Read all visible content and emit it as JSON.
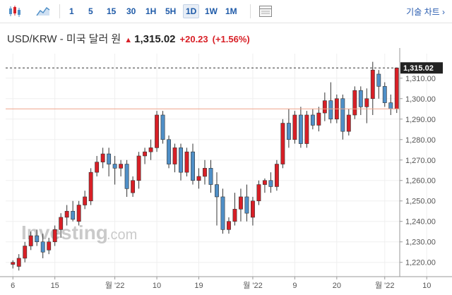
{
  "toolbar": {
    "icons": [
      "candlestick-icon",
      "area-chart-icon",
      "table-view-icon"
    ],
    "timeframes": [
      "1",
      "5",
      "15",
      "30",
      "1H",
      "5H",
      "1D",
      "1W",
      "1M"
    ],
    "active_timeframe": "1D",
    "technical_chart_label": "기술 차트 ›"
  },
  "header": {
    "name": "USD/KRW - 미국 달러 원",
    "direction_arrow": "▲",
    "price": "1,315.02",
    "change": "+20.23",
    "change_pct": "(+1.56%)"
  },
  "watermark": {
    "brand": "Investing",
    "suffix": ".com"
  },
  "colors": {
    "up": "#d81f26",
    "down": "#4f8fc7",
    "line": "#f0a38a"
  },
  "chart_data": {
    "type": "candlestick",
    "y_ticks": [
      "1,310.00",
      "1,300.00",
      "1,290.00",
      "1,280.00",
      "1,270.00",
      "1,260.00",
      "1,250.00",
      "1,240.00",
      "1,230.00",
      "1,220.00"
    ],
    "ylim": [
      1213,
      1322
    ],
    "x_ticks": [
      {
        "label": "6",
        "index": 0
      },
      {
        "label": "15",
        "index": 7
      },
      {
        "label": "월 '22",
        "index": 17
      },
      {
        "label": "10",
        "index": 24
      },
      {
        "label": "19",
        "index": 31
      },
      {
        "label": "월 '22",
        "index": 40
      },
      {
        "label": "9",
        "index": 47
      },
      {
        "label": "20",
        "index": 54
      },
      {
        "label": "월 '22",
        "index": 62
      },
      {
        "label": "10",
        "index": 69
      }
    ],
    "current_price_label": "1,315.02",
    "current_price": 1315.02,
    "previous_close_line": 1295,
    "candles": [
      [
        1219,
        1221,
        1217,
        1220
      ],
      [
        1218,
        1224,
        1216,
        1222
      ],
      [
        1222,
        1230,
        1220,
        1228
      ],
      [
        1228,
        1235,
        1226,
        1233
      ],
      [
        1233,
        1236,
        1228,
        1230
      ],
      [
        1230,
        1234,
        1222,
        1225
      ],
      [
        1226,
        1232,
        1224,
        1230
      ],
      [
        1230,
        1238,
        1228,
        1236
      ],
      [
        1236,
        1244,
        1232,
        1242
      ],
      [
        1242,
        1248,
        1238,
        1245
      ],
      [
        1245,
        1250,
        1240,
        1241
      ],
      [
        1240,
        1250,
        1238,
        1248
      ],
      [
        1248,
        1255,
        1246,
        1252
      ],
      [
        1250,
        1266,
        1248,
        1264
      ],
      [
        1264,
        1272,
        1262,
        1269
      ],
      [
        1269,
        1276,
        1266,
        1273
      ],
      [
        1273,
        1276,
        1262,
        1268
      ],
      [
        1268,
        1272,
        1258,
        1266
      ],
      [
        1266,
        1270,
        1262,
        1268
      ],
      [
        1268,
        1270,
        1252,
        1256
      ],
      [
        1254,
        1262,
        1252,
        1260
      ],
      [
        1260,
        1274,
        1256,
        1272
      ],
      [
        1272,
        1276,
        1268,
        1274
      ],
      [
        1274,
        1280,
        1270,
        1276
      ],
      [
        1276,
        1294,
        1274,
        1292
      ],
      [
        1292,
        1294,
        1278,
        1280
      ],
      [
        1280,
        1282,
        1266,
        1268
      ],
      [
        1268,
        1278,
        1264,
        1276
      ],
      [
        1276,
        1278,
        1260,
        1264
      ],
      [
        1264,
        1276,
        1262,
        1274
      ],
      [
        1274,
        1278,
        1258,
        1260
      ],
      [
        1260,
        1266,
        1256,
        1262
      ],
      [
        1262,
        1270,
        1258,
        1266
      ],
      [
        1266,
        1270,
        1254,
        1258
      ],
      [
        1258,
        1264,
        1238,
        1252
      ],
      [
        1252,
        1256,
        1234,
        1236
      ],
      [
        1236,
        1242,
        1234,
        1240
      ],
      [
        1240,
        1254,
        1238,
        1246
      ],
      [
        1246,
        1256,
        1240,
        1252
      ],
      [
        1252,
        1258,
        1240,
        1244
      ],
      [
        1242,
        1252,
        1238,
        1250
      ],
      [
        1250,
        1260,
        1248,
        1258
      ],
      [
        1258,
        1261,
        1254,
        1260
      ],
      [
        1260,
        1264,
        1254,
        1257
      ],
      [
        1257,
        1270,
        1255,
        1268
      ],
      [
        1268,
        1290,
        1266,
        1288
      ],
      [
        1288,
        1295,
        1276,
        1280
      ],
      [
        1280,
        1294,
        1278,
        1292
      ],
      [
        1292,
        1296,
        1276,
        1278
      ],
      [
        1278,
        1294,
        1276,
        1292
      ],
      [
        1292,
        1295,
        1285,
        1287
      ],
      [
        1287,
        1296,
        1284,
        1293
      ],
      [
        1293,
        1303,
        1289,
        1299
      ],
      [
        1299,
        1308,
        1288,
        1290
      ],
      [
        1290,
        1302,
        1288,
        1300
      ],
      [
        1300,
        1302,
        1280,
        1284
      ],
      [
        1284,
        1295,
        1282,
        1292
      ],
      [
        1292,
        1306,
        1290,
        1304
      ],
      [
        1304,
        1306,
        1292,
        1296
      ],
      [
        1296,
        1305,
        1288,
        1300
      ],
      [
        1300,
        1318,
        1292,
        1314
      ],
      [
        1312,
        1314,
        1300,
        1306
      ],
      [
        1306,
        1308,
        1296,
        1298
      ],
      [
        1298,
        1302,
        1292,
        1295
      ],
      [
        1295,
        1315.02,
        1293,
        1315.02
      ]
    ]
  }
}
